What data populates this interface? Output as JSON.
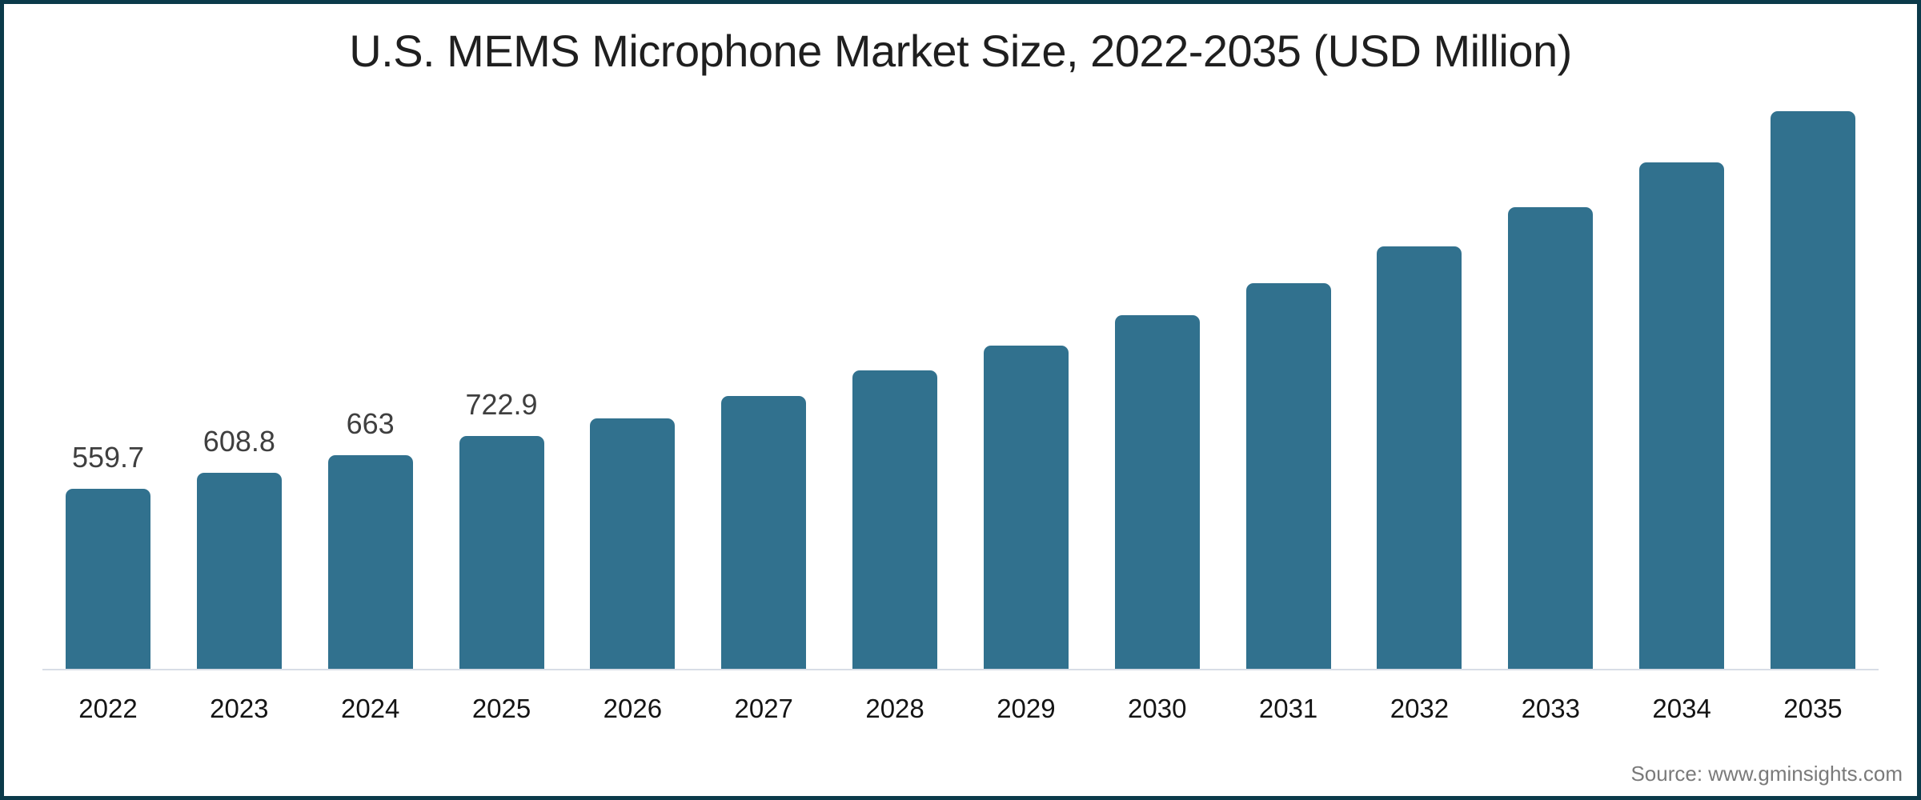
{
  "chart": {
    "title": "U.S. MEMS Microphone Market Size, 2022-2035 (USD Million)",
    "source": "Source: www.gminsights.com",
    "colors": {
      "bar": "#31718E",
      "frame_border": "#0B3A4A",
      "axis_line": "#D8DDE6",
      "title_text": "#1F1F1F",
      "data_label_text": "#3F3F3F",
      "tick_text": "#141414",
      "source_text": "#7A7A7A"
    }
  },
  "chart_data": {
    "type": "bar",
    "title": "U.S. MEMS Microphone Market Size, 2022-2035 (USD Million)",
    "unit": "USD Million",
    "categories": [
      "2022",
      "2023",
      "2024",
      "2025",
      "2026",
      "2027",
      "2028",
      "2029",
      "2030",
      "2031",
      "2032",
      "2033",
      "2034",
      "2035"
    ],
    "values": [
      559.7,
      608.8,
      663,
      722.9,
      779,
      849,
      927,
      1004,
      1100,
      1200,
      1314,
      1436,
      1575,
      1734
    ],
    "data_labels": [
      "559.7",
      "608.8",
      "663",
      "722.9",
      "",
      "",
      "",
      "",
      "",
      "",
      "",
      "",
      "",
      ""
    ],
    "xlabel": "",
    "ylabel": "",
    "ylim": [
      0,
      2080
    ],
    "grid": "off",
    "legend": "none",
    "y_axis_shown": false,
    "baseline_axis": "x"
  }
}
